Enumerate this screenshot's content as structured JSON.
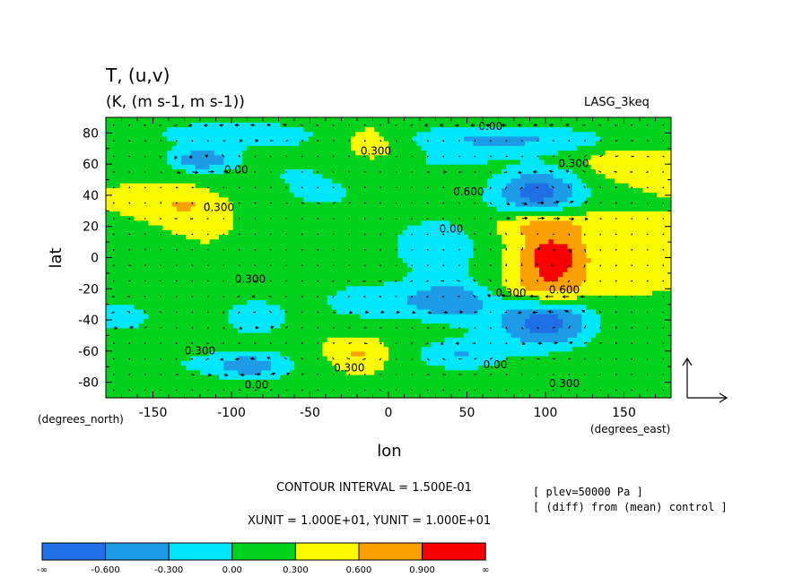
{
  "chart_data": {
    "type": "heatmap",
    "title": "T, (u,v)",
    "subtitle": "(K, (m s-1, m s-1))",
    "dataset_label": "LASG_3keq",
    "xlabel": "lon",
    "ylabel": "lat",
    "x_unit_label": "(degrees_east)",
    "y_unit_label": "(degrees_north)",
    "xlim": [
      -180,
      180
    ],
    "ylim": [
      -90,
      90
    ],
    "x_ticks": [
      -150,
      -100,
      -50,
      0,
      50,
      100,
      150
    ],
    "x_tick_labels": [
      "-150",
      "-100",
      "-50",
      "0",
      "50",
      "100",
      "150"
    ],
    "y_ticks": [
      80,
      60,
      40,
      20,
      0,
      -20,
      -40,
      -60,
      -80
    ],
    "y_tick_labels": [
      "80",
      "60",
      "40",
      "20",
      "0",
      "-20",
      "-40",
      "-60",
      "-80"
    ],
    "contour_interval_text": "CONTOUR INTERVAL = 1.500E-01",
    "unit_vector_text": "XUNIT = 1.000E+01, YUNIT = 1.000E+01",
    "info_lines": [
      "[ plev=50000 Pa ]",
      "[ (diff) from (mean) control ]"
    ],
    "colorbar": {
      "colors": [
        "#1e6ee6",
        "#1e9be6",
        "#00e6fa",
        "#00d21e",
        "#fafa00",
        "#faa000",
        "#fa0000"
      ],
      "boundary_labels": [
        "-∞",
        "-0.600",
        "-0.300",
        "0.00",
        "0.300",
        "0.600",
        "0.900",
        "∞"
      ]
    },
    "contour_labels": [
      {
        "text": "0.00",
        "lon": 65,
        "lat": 82
      },
      {
        "text": "0.300",
        "lon": -8,
        "lat": 66
      },
      {
        "text": "0.300",
        "lon": 118,
        "lat": 58
      },
      {
        "text": "0.00",
        "lon": -97,
        "lat": 54
      },
      {
        "text": "0.600",
        "lon": 51,
        "lat": 40
      },
      {
        "text": "0.300",
        "lon": -108,
        "lat": 30
      },
      {
        "text": "0.00",
        "lon": 40,
        "lat": 16
      },
      {
        "text": "0.300",
        "lon": -88,
        "lat": -16
      },
      {
        "text": "0.300",
        "lon": 78,
        "lat": -25
      },
      {
        "text": "0.600",
        "lon": 112,
        "lat": -23
      },
      {
        "text": "0.300",
        "lon": -120,
        "lat": -62
      },
      {
        "text": "0.300",
        "lon": -25,
        "lat": -73
      },
      {
        "text": "0.00",
        "lon": 68,
        "lat": -71
      },
      {
        "text": "0.300",
        "lon": 112,
        "lat": -83
      },
      {
        "text": "0.00",
        "lon": -84,
        "lat": -84
      }
    ],
    "field": {
      "base": 0.3,
      "blobs": [
        {
          "lon": 105,
          "lat": 0,
          "a": 0.85,
          "rx": 22,
          "ry": 14
        },
        {
          "lon": 100,
          "lat": 22,
          "a": 0.55,
          "rx": 30,
          "ry": 10
        },
        {
          "lon": 100,
          "lat": -20,
          "a": 0.55,
          "rx": 30,
          "ry": 10
        },
        {
          "lon": 95,
          "lat": 42,
          "a": -1.05,
          "rx": 30,
          "ry": 16
        },
        {
          "lon": 100,
          "lat": -42,
          "a": -1.05,
          "rx": 32,
          "ry": 17
        },
        {
          "lon": -130,
          "lat": 34,
          "a": 0.35,
          "rx": 18,
          "ry": 8
        },
        {
          "lon": -120,
          "lat": 63,
          "a": -0.8,
          "rx": 22,
          "ry": 8
        },
        {
          "lon": -100,
          "lat": 80,
          "a": -0.55,
          "rx": 55,
          "ry": 9
        },
        {
          "lon": -60,
          "lat": 55,
          "a": -0.3,
          "rx": 40,
          "ry": 16
        },
        {
          "lon": 70,
          "lat": 76,
          "a": -0.65,
          "rx": 80,
          "ry": 10
        },
        {
          "lon": 40,
          "lat": 62,
          "a": -0.35,
          "rx": 25,
          "ry": 6
        },
        {
          "lon": -10,
          "lat": 75,
          "a": 0.35,
          "rx": 25,
          "ry": 10
        },
        {
          "lon": 30,
          "lat": 8,
          "a": -0.5,
          "rx": 35,
          "ry": 22
        },
        {
          "lon": -15,
          "lat": -28,
          "a": -0.55,
          "rx": 30,
          "ry": 12
        },
        {
          "lon": 40,
          "lat": -28,
          "a": -0.8,
          "rx": 30,
          "ry": 14
        },
        {
          "lon": -85,
          "lat": -38,
          "a": -0.6,
          "rx": 22,
          "ry": 12
        },
        {
          "lon": -170,
          "lat": -38,
          "a": -0.55,
          "rx": 20,
          "ry": 10
        },
        {
          "lon": -20,
          "lat": -62,
          "a": 0.35,
          "rx": 15,
          "ry": 7
        },
        {
          "lon": 45,
          "lat": -62,
          "a": -0.6,
          "rx": 30,
          "ry": 11
        },
        {
          "lon": -110,
          "lat": -68,
          "a": -0.35,
          "rx": 50,
          "ry": 10
        },
        {
          "lon": -85,
          "lat": -70,
          "a": -0.5,
          "rx": 25,
          "ry": 10
        },
        {
          "lon": -165,
          "lat": 5,
          "a": -0.3,
          "rx": 15,
          "ry": 10
        },
        {
          "lon": -40,
          "lat": 40,
          "a": -0.3,
          "rx": 25,
          "ry": 10
        },
        {
          "lon": 150,
          "lat": 62,
          "a": 0.3,
          "rx": 25,
          "ry": 10
        }
      ]
    }
  }
}
